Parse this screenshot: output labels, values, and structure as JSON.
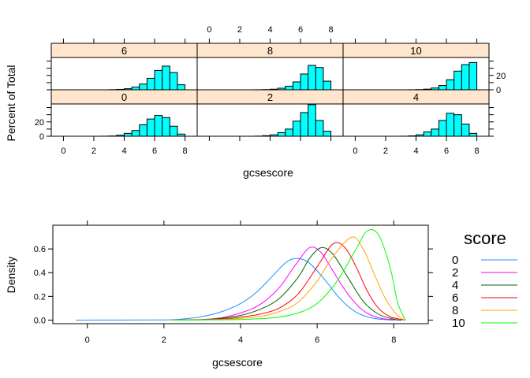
{
  "chart_data": [
    {
      "type": "bar",
      "layout": "lattice histogram, 3 columns x 2 rows",
      "xlabel": "gcsescore",
      "ylabel": "Percent of Total",
      "x_ticks": [
        "0",
        "2",
        "4",
        "6",
        "8"
      ],
      "y_ticks": [
        "0",
        "20"
      ],
      "xlim": [
        -0.8,
        8.8
      ],
      "ylim": [
        0,
        45
      ],
      "bar_fill": "#00FFFF",
      "strip_fill": "#FFE5CC",
      "bin_edges": [
        0,
        0.5,
        1,
        1.5,
        2,
        2.5,
        3,
        3.5,
        4,
        4.5,
        5,
        5.5,
        6,
        6.5,
        7,
        7.5,
        8
      ],
      "panels": [
        {
          "label": "6",
          "values": [
            0,
            0,
            0,
            0,
            0,
            0,
            0.2,
            0.6,
            1.5,
            3.8,
            8,
            16,
            27,
            33,
            24,
            7,
            0.8
          ]
        },
        {
          "label": "8",
          "values": [
            0,
            0,
            0,
            0,
            0,
            0,
            0.1,
            0.3,
            0.8,
            2.2,
            5,
            11,
            22,
            34,
            31,
            12,
            2
          ]
        },
        {
          "label": "10",
          "values": [
            0,
            0,
            0,
            0,
            0,
            0,
            0,
            0.1,
            0.3,
            0.9,
            2.5,
            6,
            14,
            26,
            35,
            38,
            4
          ]
        },
        {
          "label": "0",
          "values": [
            0,
            0,
            0,
            0,
            0,
            0.1,
            0.4,
            1.5,
            4,
            8,
            16,
            24,
            29,
            26,
            14,
            3,
            0.3
          ]
        },
        {
          "label": "2",
          "values": [
            0,
            0,
            0,
            0,
            0,
            0,
            0.2,
            0.8,
            2,
            5,
            10,
            21,
            33,
            44,
            22,
            7,
            0.6
          ]
        },
        {
          "label": "4",
          "values": [
            0,
            0,
            0,
            0,
            0,
            0,
            0.1,
            0.5,
            2,
            6,
            10,
            22,
            32,
            30,
            17,
            4,
            0.5
          ]
        }
      ]
    },
    {
      "type": "line",
      "xlabel": "gcsescore",
      "ylabel": "Density",
      "x_ticks": [
        "0",
        "2",
        "4",
        "6",
        "8"
      ],
      "y_ticks": [
        "0.0",
        "0.2",
        "0.4",
        "0.6"
      ],
      "xlim": [
        -0.9,
        8.9
      ],
      "ylim": [
        -0.03,
        0.8
      ],
      "legend_title": "score",
      "legend_position": "right",
      "series": [
        {
          "name": "0",
          "color": "#1E90FF",
          "x": [
            -0.3,
            2,
            2.5,
            3,
            3.5,
            4,
            4.4,
            4.8,
            5.2,
            5.5,
            5.8,
            6.2,
            6.6,
            7.0,
            7.4,
            7.8,
            8.0
          ],
          "y": [
            0,
            0.002,
            0.01,
            0.03,
            0.07,
            0.14,
            0.23,
            0.36,
            0.49,
            0.52,
            0.48,
            0.34,
            0.18,
            0.07,
            0.02,
            0.003,
            0
          ]
        },
        {
          "name": "2",
          "color": "#FF00FF",
          "x": [
            2.2,
            3,
            3.5,
            4,
            4.5,
            5.0,
            5.4,
            5.8,
            6.1,
            6.4,
            6.8,
            7.2,
            7.6,
            8.0,
            8.2
          ],
          "y": [
            0,
            0.005,
            0.02,
            0.06,
            0.13,
            0.27,
            0.45,
            0.61,
            0.57,
            0.42,
            0.22,
            0.08,
            0.02,
            0.003,
            0
          ]
        },
        {
          "name": "4",
          "color": "#006400",
          "x": [
            2.2,
            3,
            3.5,
            4,
            4.5,
            5.0,
            5.5,
            5.8,
            6.1,
            6.4,
            6.8,
            7.2,
            7.6,
            8.0,
            8.2
          ],
          "y": [
            0,
            0.004,
            0.015,
            0.04,
            0.09,
            0.18,
            0.36,
            0.52,
            0.61,
            0.56,
            0.36,
            0.16,
            0.05,
            0.008,
            0
          ]
        },
        {
          "name": "6",
          "color": "#FF0000",
          "x": [
            2.2,
            3,
            3.5,
            4,
            4.5,
            5.0,
            5.5,
            6.0,
            6.4,
            6.7,
            7.0,
            7.3,
            7.6,
            7.9,
            8.2,
            8.3
          ],
          "y": [
            0,
            0.003,
            0.01,
            0.025,
            0.05,
            0.1,
            0.22,
            0.45,
            0.64,
            0.62,
            0.46,
            0.25,
            0.1,
            0.03,
            0.005,
            0
          ]
        },
        {
          "name": "8",
          "color": "#FFA500",
          "x": [
            2.2,
            3,
            3.5,
            4,
            4.5,
            5.0,
            5.5,
            6.0,
            6.4,
            6.9,
            7.2,
            7.5,
            7.8,
            8.1,
            8.3
          ],
          "y": [
            0,
            0.002,
            0.006,
            0.015,
            0.03,
            0.07,
            0.15,
            0.33,
            0.53,
            0.7,
            0.6,
            0.38,
            0.17,
            0.04,
            0
          ]
        },
        {
          "name": "10",
          "color": "#00FF00",
          "x": [
            2.2,
            3,
            4,
            4.5,
            5.0,
            5.5,
            6.0,
            6.5,
            7.0,
            7.3,
            7.6,
            7.9,
            8.1,
            8.3
          ],
          "y": [
            0,
            0.001,
            0.005,
            0.012,
            0.025,
            0.06,
            0.14,
            0.32,
            0.59,
            0.75,
            0.72,
            0.45,
            0.15,
            0
          ]
        }
      ]
    }
  ]
}
